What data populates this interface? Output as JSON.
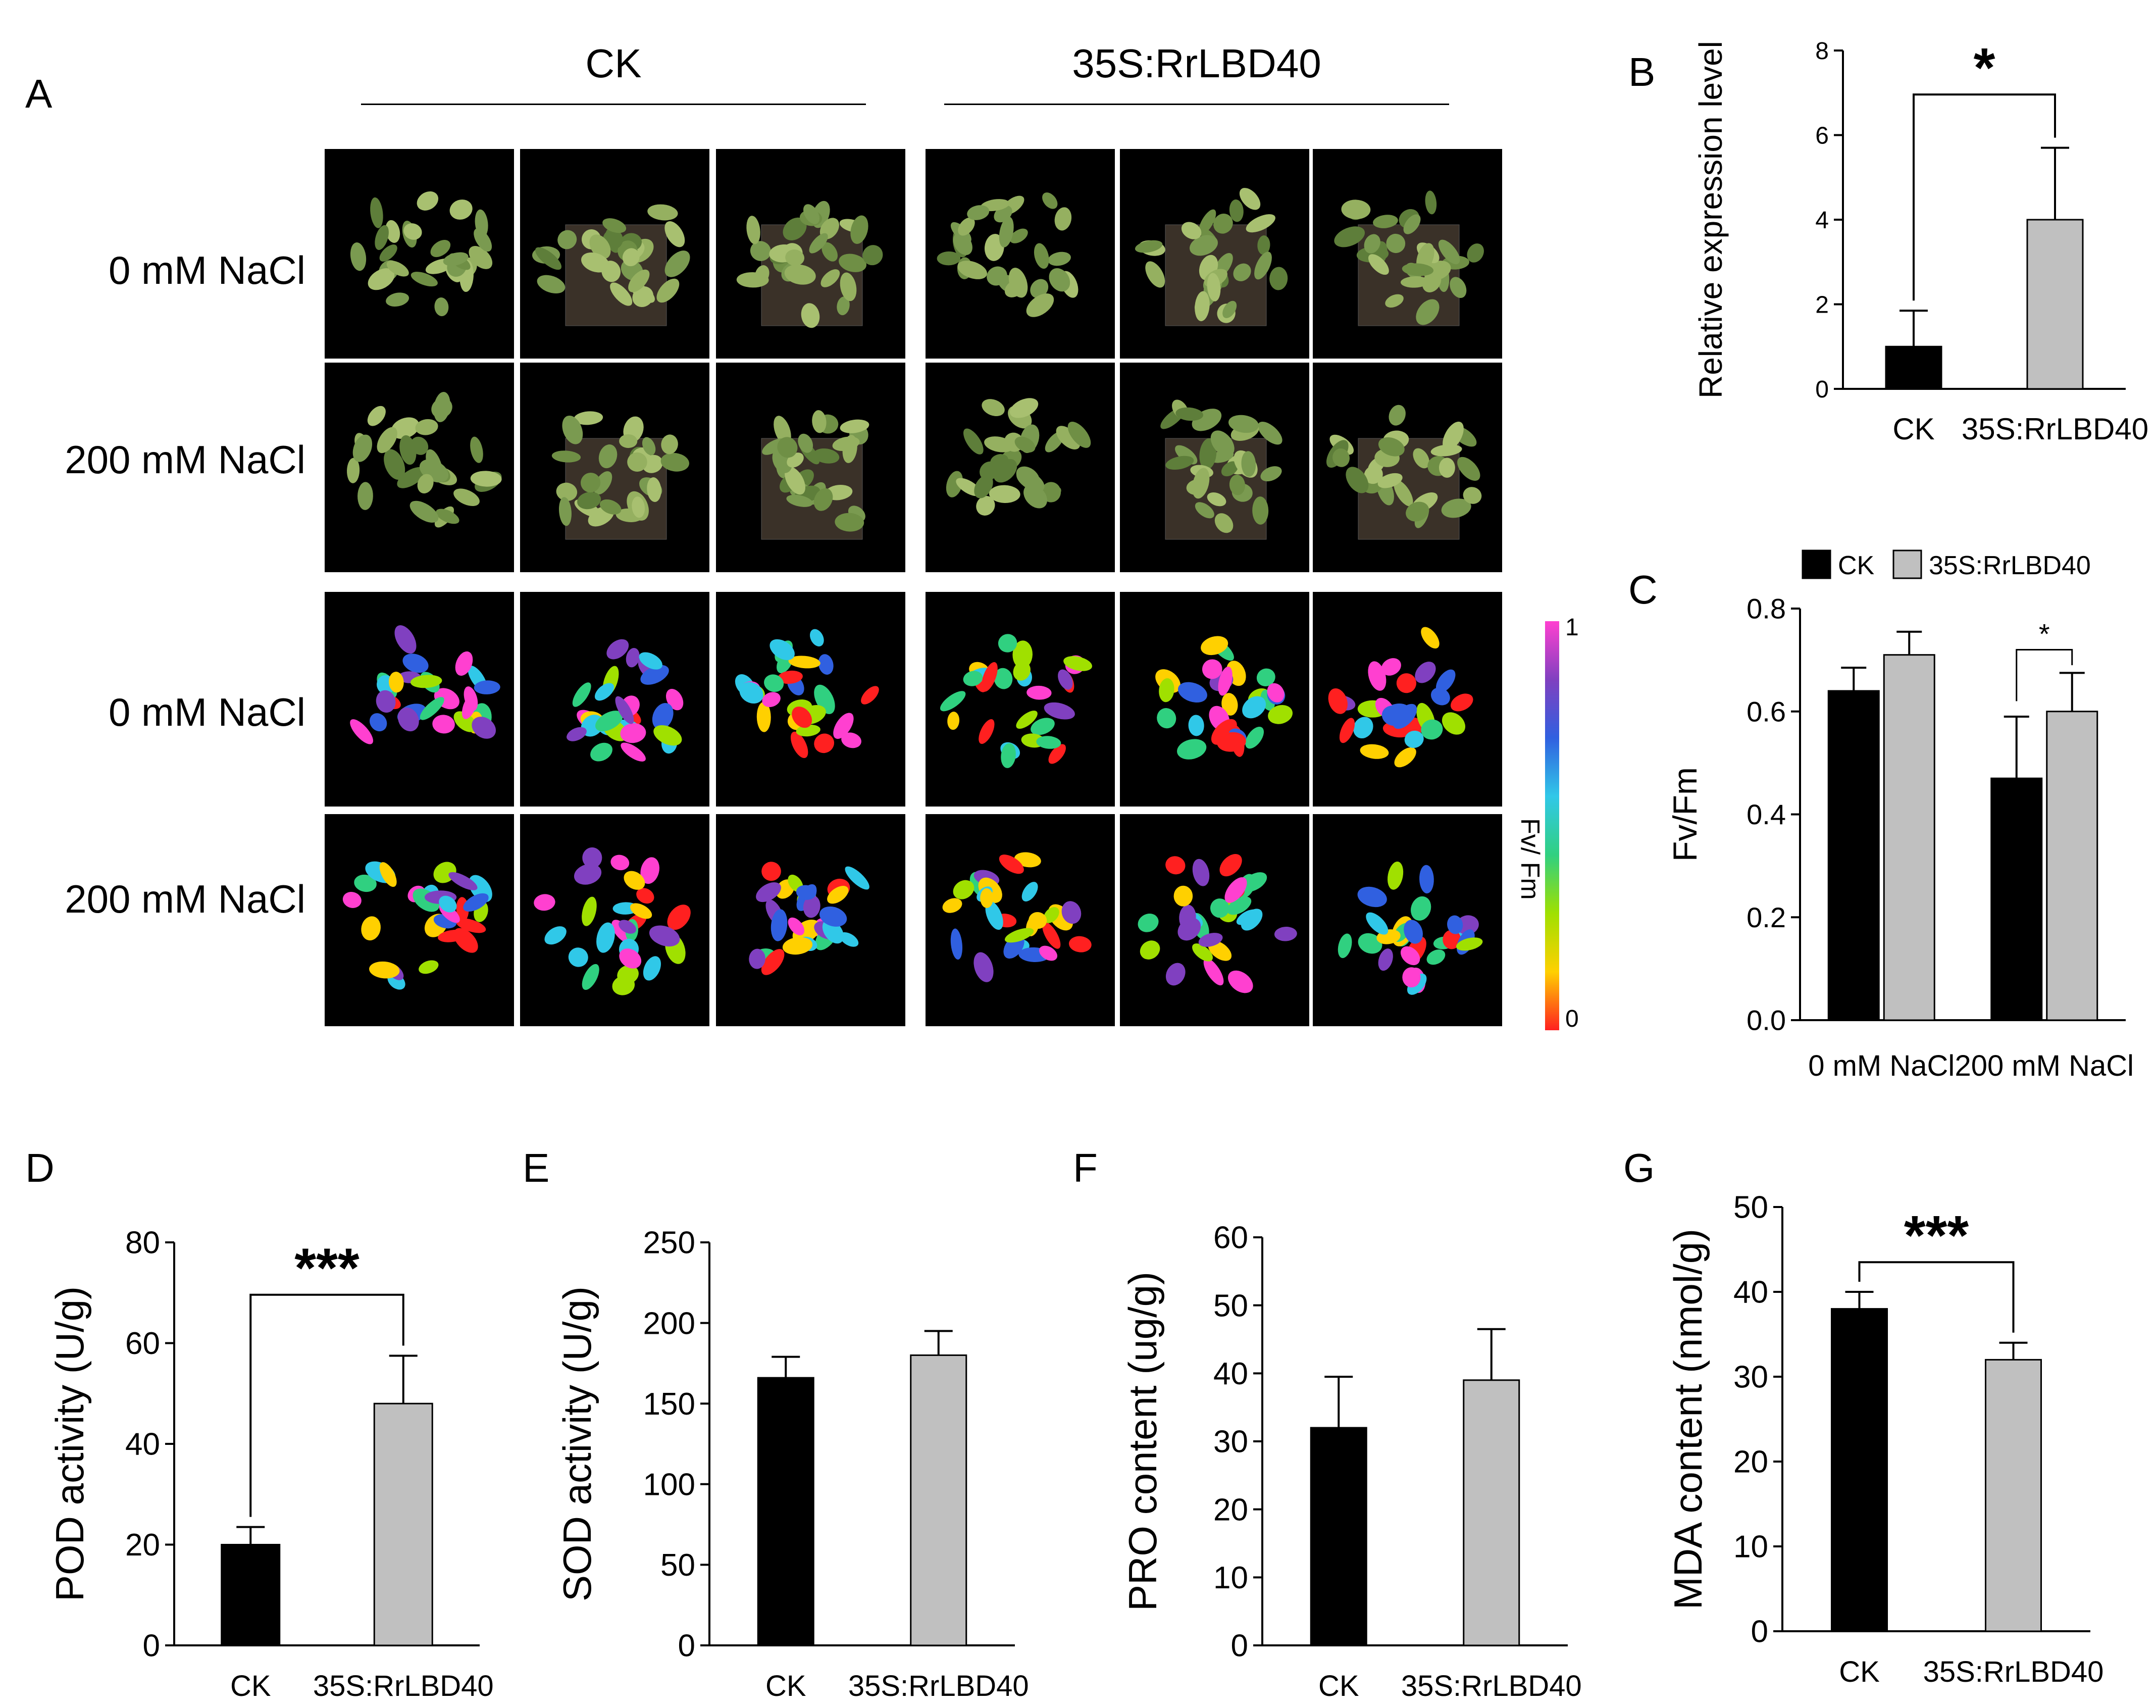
{
  "panel_a": {
    "letter": "A",
    "groups": [
      {
        "label": "CK"
      },
      {
        "label": "35S:RrLBD40"
      }
    ],
    "rows": [
      {
        "label": "0 mM NaCl",
        "mode": "photo"
      },
      {
        "label": "200 mM NaCl",
        "mode": "photo"
      },
      {
        "label": "0 mM NaCl",
        "mode": "fluor"
      },
      {
        "label": "200 mM NaCl",
        "mode": "fluor"
      }
    ],
    "colorbar": {
      "label": "Fv/ Fm",
      "min": "0",
      "max": "1",
      "colors": [
        "#ff2020",
        "#ffd000",
        "#a0e000",
        "#30d080",
        "#30c8e8",
        "#3060e0",
        "#8040c0",
        "#ff40d0"
      ]
    }
  },
  "chart_data": [
    {
      "letter": "B",
      "type": "bar",
      "title": "",
      "ylabel": "Relative expression level",
      "xlabel": "",
      "categories": [
        "CK",
        "35S:RrLBD40"
      ],
      "values": [
        1.0,
        4.0
      ],
      "errors": [
        0.85,
        1.7
      ],
      "colors": [
        "#000000",
        "#c0c0c0"
      ],
      "ylim": [
        0,
        8
      ],
      "yticks": [
        "0",
        "2",
        "4",
        "6",
        "8"
      ],
      "significance": [
        {
          "from": 0,
          "to": 1,
          "label": "*"
        }
      ]
    },
    {
      "letter": "C",
      "type": "bar",
      "title": "",
      "ylabel": "Fv/Fm",
      "xlabel": "",
      "categories": [
        "0 mM NaCl",
        "200 mM NaCl"
      ],
      "series": [
        {
          "name": "CK",
          "color": "#000000",
          "values": [
            0.64,
            0.47
          ],
          "errors": [
            0.045,
            0.12
          ]
        },
        {
          "name": "35S:RrLBD40",
          "color": "#c0c0c0",
          "values": [
            0.71,
            0.6
          ],
          "errors": [
            0.045,
            0.075
          ]
        }
      ],
      "ylim": [
        0,
        0.8
      ],
      "yticks": [
        "0.0",
        "0.2",
        "0.4",
        "0.6",
        "0.8"
      ],
      "legend": "top",
      "significance": [
        {
          "category": 1,
          "label": "*"
        }
      ]
    },
    {
      "letter": "D",
      "type": "bar",
      "ylabel": "POD activity (U/g)",
      "categories": [
        "CK",
        "35S:RrLBD40"
      ],
      "values": [
        20,
        48
      ],
      "errors": [
        3.5,
        9.5
      ],
      "colors": [
        "#000000",
        "#c0c0c0"
      ],
      "ylim": [
        0,
        80
      ],
      "yticks": [
        "0",
        "20",
        "40",
        "60",
        "80"
      ],
      "significance": [
        {
          "from": 0,
          "to": 1,
          "label": "***"
        }
      ]
    },
    {
      "letter": "E",
      "type": "bar",
      "ylabel": "SOD activity (U/g)",
      "categories": [
        "CK",
        "35S:RrLBD40"
      ],
      "values": [
        166,
        180
      ],
      "errors": [
        13,
        15
      ],
      "colors": [
        "#000000",
        "#c0c0c0"
      ],
      "ylim": [
        0,
        250
      ],
      "yticks": [
        "0",
        "50",
        "100",
        "150",
        "200",
        "250"
      ],
      "significance": []
    },
    {
      "letter": "F",
      "type": "bar",
      "ylabel": "PRO content (ug/g)",
      "categories": [
        "CK",
        "35S:RrLBD40"
      ],
      "values": [
        32,
        39
      ],
      "errors": [
        7.5,
        7.5
      ],
      "colors": [
        "#000000",
        "#c0c0c0"
      ],
      "ylim": [
        0,
        60
      ],
      "yticks": [
        "0",
        "10",
        "20",
        "30",
        "40",
        "50",
        "60"
      ],
      "significance": []
    },
    {
      "letter": "G",
      "type": "bar",
      "ylabel": "MDA content (nmol/g)",
      "categories": [
        "CK",
        "35S:RrLBD40"
      ],
      "values": [
        38,
        32
      ],
      "errors": [
        2,
        2
      ],
      "colors": [
        "#000000",
        "#c0c0c0"
      ],
      "ylim": [
        0,
        50
      ],
      "yticks": [
        "0",
        "10",
        "20",
        "30",
        "40",
        "50"
      ],
      "significance": [
        {
          "from": 0,
          "to": 1,
          "label": "***"
        }
      ]
    }
  ]
}
